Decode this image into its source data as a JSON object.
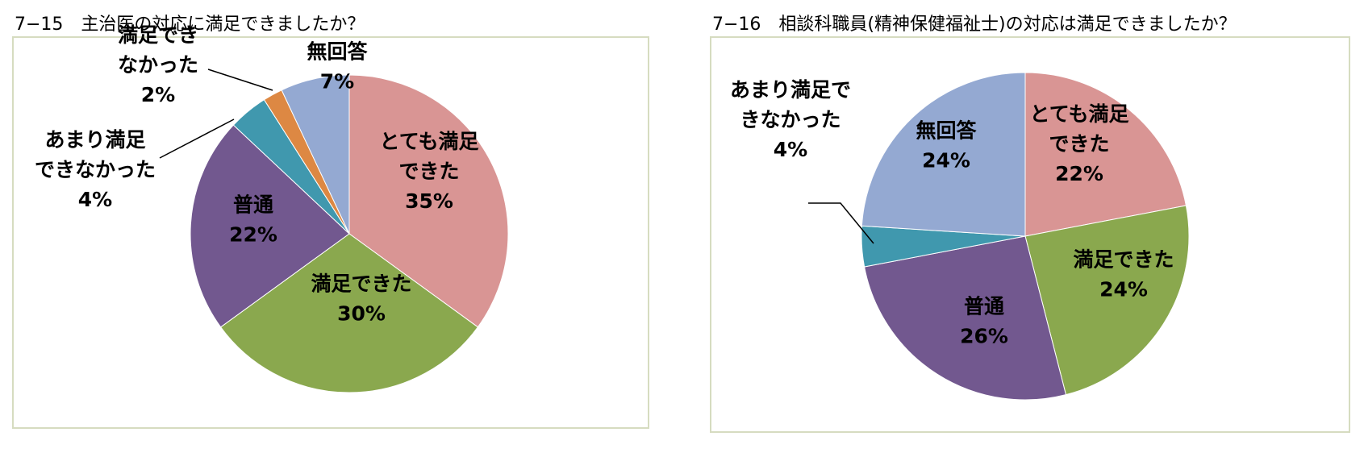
{
  "chart_data": [
    {
      "type": "pie",
      "title": "7−15　主治医の対応に満足できましたか？",
      "slices": [
        {
          "label": [
            "とても満足",
            "できた"
          ],
          "pct": "35%",
          "value": 35,
          "color": "#d99594"
        },
        {
          "label": [
            "満足できた"
          ],
          "pct": "30%",
          "value": 30,
          "color": "#8aa84e"
        },
        {
          "label": [
            "普通"
          ],
          "pct": "22%",
          "value": 22,
          "color": "#72588f"
        },
        {
          "label": [
            "あまり満足",
            "できなかった"
          ],
          "pct": "4%",
          "value": 4,
          "color": "#4098ae"
        },
        {
          "label": [
            "満足でき",
            "なかった"
          ],
          "pct": "2%",
          "value": 2,
          "color": "#dd8843"
        },
        {
          "label": [
            "無回答"
          ],
          "pct": "7%",
          "value": 7,
          "color": "#94a9d2"
        }
      ]
    },
    {
      "type": "pie",
      "title": "7−16　相談科職員(精神保健福祉士)の対応は満足できましたか？",
      "slices": [
        {
          "label": [
            "とても満足",
            "できた"
          ],
          "pct": "22%",
          "value": 22,
          "color": "#d99594"
        },
        {
          "label": [
            "満足できた"
          ],
          "pct": "24%",
          "value": 24,
          "color": "#8aa84e"
        },
        {
          "label": [
            "普通"
          ],
          "pct": "26%",
          "value": 26,
          "color": "#72588f"
        },
        {
          "label": [
            "あまり満足で",
            "きなかった"
          ],
          "pct": "4%",
          "value": 4,
          "color": "#4098ae"
        },
        {
          "label": [
            "無回答"
          ],
          "pct": "24%",
          "value": 24,
          "color": "#94a9d2"
        }
      ]
    }
  ]
}
